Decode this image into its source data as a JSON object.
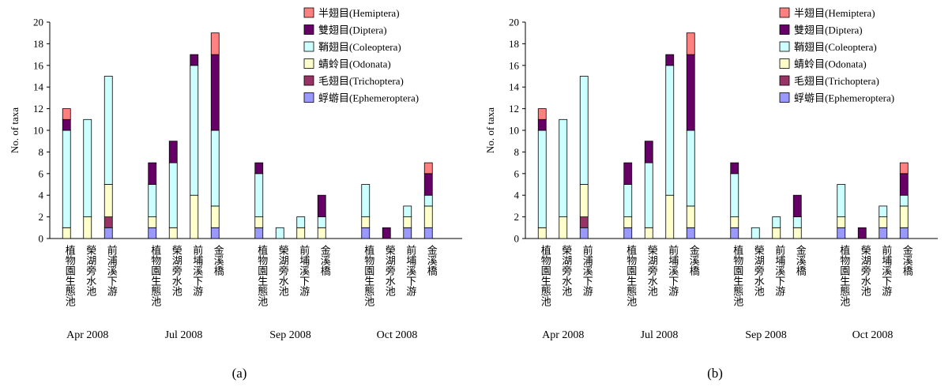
{
  "chart_data": [
    {
      "type": "bar",
      "stacked": true,
      "caption": "(a)",
      "ylabel": "No. of taxa",
      "ylim": [
        0,
        20
      ],
      "yticks": [
        0,
        2,
        4,
        6,
        8,
        10,
        12,
        14,
        16,
        18,
        20
      ],
      "grid": false,
      "legend_position": "top-right",
      "groups": [
        {
          "label": "Apr 2008",
          "categories": [
            "植物園生態池",
            "榮湖旁水池",
            "前浦溪下游"
          ]
        },
        {
          "label": "Jul 2008",
          "categories": [
            "植物園生態池",
            "榮湖旁水池",
            "前埔溪下游",
            "金溪橋"
          ]
        },
        {
          "label": "Sep 2008",
          "categories": [
            "植物園生態池",
            "榮湖旁水池",
            "前埔溪下游",
            "金溪橋"
          ]
        },
        {
          "label": "Oct 2008",
          "categories": [
            "植物園生態池",
            "榮湖旁水池",
            "前埔溪下游",
            "金溪橋"
          ]
        }
      ],
      "series": [
        {
          "name": "蜉蝣目(Ephemeroptera)",
          "color": "#9999ff",
          "values": [
            0,
            0,
            1,
            1,
            0,
            0,
            1,
            1,
            0,
            0,
            0,
            1,
            0,
            1,
            1
          ]
        },
        {
          "name": "毛翅目(Trichoptera)",
          "color": "#993366",
          "values": [
            0,
            0,
            1,
            0,
            0,
            0,
            0,
            0,
            0,
            0,
            0,
            0,
            0,
            0,
            0
          ]
        },
        {
          "name": "蜻蛉目(Odonata)",
          "color": "#ffffcc",
          "values": [
            1,
            2,
            3,
            1,
            1,
            4,
            2,
            1,
            0,
            1,
            1,
            1,
            0,
            1,
            2
          ]
        },
        {
          "name": "鞘翅目(Coleoptera)",
          "color": "#ccffff",
          "values": [
            9,
            9,
            10,
            3,
            6,
            12,
            7,
            4,
            1,
            1,
            1,
            3,
            0,
            1,
            1
          ]
        },
        {
          "name": "雙翅目(Diptera)",
          "color": "#660066",
          "values": [
            1,
            0,
            0,
            2,
            2,
            1,
            7,
            1,
            0,
            0,
            2,
            0,
            1,
            0,
            2
          ]
        },
        {
          "name": "半翅目(Hemiptera)",
          "color": "#ff8080",
          "values": [
            1,
            0,
            0,
            0,
            0,
            0,
            2,
            0,
            0,
            0,
            0,
            0,
            0,
            0,
            1
          ]
        }
      ]
    },
    {
      "type": "bar",
      "stacked": true,
      "caption": "(b)",
      "ylabel": "No. of taxa",
      "ylim": [
        0,
        20
      ],
      "yticks": [
        0,
        2,
        4,
        6,
        8,
        10,
        12,
        14,
        16,
        18,
        20
      ],
      "grid": false,
      "legend_position": "top-right",
      "groups": [
        {
          "label": "Apr 2008",
          "categories": [
            "植物園生態池",
            "榮湖旁水池",
            "前浦溪下游"
          ]
        },
        {
          "label": "Jul 2008",
          "categories": [
            "植物園生態池",
            "榮湖旁水池",
            "前埔溪下游",
            "金溪橋"
          ]
        },
        {
          "label": "Sep 2008",
          "categories": [
            "植物園生態池",
            "榮湖旁水池",
            "前埔溪下游",
            "金溪橋"
          ]
        },
        {
          "label": "Oct 2008",
          "categories": [
            "植物園生態池",
            "榮湖旁水池",
            "前埔溪下游",
            "金溪橋"
          ]
        }
      ],
      "series": [
        {
          "name": "蜉蝣目(Ephemeroptera)",
          "color": "#9999ff",
          "values": [
            0,
            0,
            1,
            1,
            0,
            0,
            1,
            1,
            0,
            0,
            0,
            1,
            0,
            1,
            1
          ]
        },
        {
          "name": "毛翅目(Trichoptera)",
          "color": "#993366",
          "values": [
            0,
            0,
            1,
            0,
            0,
            0,
            0,
            0,
            0,
            0,
            0,
            0,
            0,
            0,
            0
          ]
        },
        {
          "name": "蜻蛉目(Odonata)",
          "color": "#ffffcc",
          "values": [
            1,
            2,
            3,
            1,
            1,
            4,
            2,
            1,
            0,
            1,
            1,
            1,
            0,
            1,
            2
          ]
        },
        {
          "name": "鞘翅目(Coleoptera)",
          "color": "#ccffff",
          "values": [
            9,
            9,
            10,
            3,
            6,
            12,
            7,
            4,
            1,
            1,
            1,
            3,
            0,
            1,
            1
          ]
        },
        {
          "name": "雙翅目(Diptera)",
          "color": "#660066",
          "values": [
            1,
            0,
            0,
            2,
            2,
            1,
            7,
            1,
            0,
            0,
            2,
            0,
            1,
            0,
            2
          ]
        },
        {
          "name": "半翅目(Hemiptera)",
          "color": "#ff8080",
          "values": [
            1,
            0,
            0,
            0,
            0,
            0,
            2,
            0,
            0,
            0,
            0,
            0,
            0,
            0,
            1
          ]
        }
      ]
    }
  ]
}
